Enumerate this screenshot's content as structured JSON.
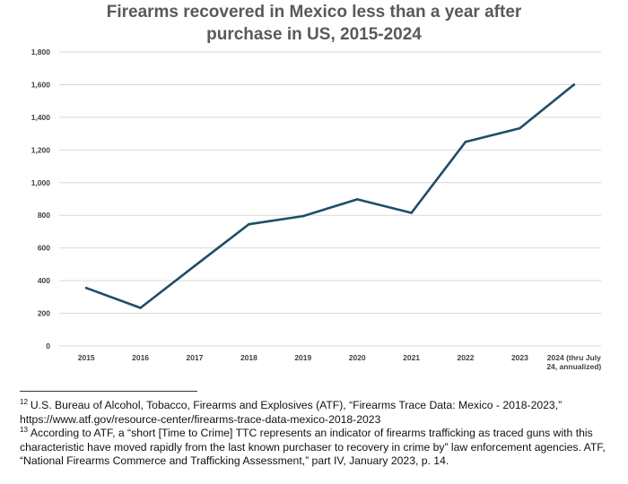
{
  "colors": {
    "line": "#1f4e66",
    "grid": "#d9d9d9",
    "title": "#595959",
    "tick": "#404040"
  },
  "chart_data": {
    "type": "line",
    "title_lines": [
      "Firearms recovered in Mexico less than a year after",
      "purchase in US, 2015-2024"
    ],
    "xlabel": "",
    "ylabel": "",
    "categories": [
      [
        "2015"
      ],
      [
        "2016"
      ],
      [
        "2017"
      ],
      [
        "2018"
      ],
      [
        "2019"
      ],
      [
        "2020"
      ],
      [
        "2021"
      ],
      [
        "2022"
      ],
      [
        "2023"
      ],
      [
        "2024 (thru July",
        "24, annualized)"
      ]
    ],
    "series": [
      {
        "name": "Firearms recovered",
        "values": [
          355,
          233,
          490,
          745,
          795,
          898,
          815,
          1250,
          1333,
          1600
        ]
      }
    ],
    "ylim": [
      0,
      1800
    ],
    "yticks": [
      0,
      200,
      400,
      600,
      800,
      1000,
      1200,
      1400,
      1600,
      1800
    ],
    "ytick_labels": [
      "0",
      "200",
      "400",
      "600",
      "800",
      "1,000",
      "1,200",
      "1,400",
      "1,600",
      "1,800"
    ],
    "grid": true,
    "legend": "none"
  },
  "footnotes": [
    {
      "num": "12",
      "text": "U.S. Bureau of Alcohol, Tobacco, Firearms and Explosives (ATF), “Firearms Trace Data: Mexico - 2018-2023,” https://www.atf.gov/resource-center/firearms-trace-data-mexico-2018-2023"
    },
    {
      "num": "13",
      "text": "According to ATF, a “short [Time to Crime] TTC represents an indicator of firearms trafficking as traced guns with this characteristic have moved rapidly from the last known purchaser to recovery in crime by” law enforcement agencies. ATF, “National Firearms Commerce and Trafficking Assessment,” part IV, January 2023, p. 14."
    }
  ]
}
